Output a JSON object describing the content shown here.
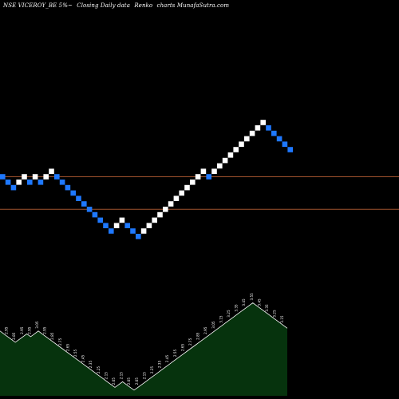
{
  "header": {
    "symbol": "NSE VICEROY_BE 5%~",
    "chart_kind": "Closing Daily data",
    "chart_style": "Renko",
    "brand": "charts MunafaSutra.com"
  },
  "colors": {
    "background": "#000000",
    "up_brick": "#ffffff",
    "down_brick": "#1e78ff",
    "reference_line": "#a0522d",
    "volume_fill": "#06330d",
    "volume_stroke": "#ffffff",
    "label": "#ffffff"
  },
  "chart_data": {
    "type": "renko",
    "grid": false,
    "reference_lines": [
      {
        "level": 0
      },
      {
        "level": -6
      }
    ],
    "bricks": [
      {
        "level": 0,
        "dir": "down"
      },
      {
        "level": -1,
        "dir": "down"
      },
      {
        "level": -2,
        "dir": "down"
      },
      {
        "level": -1,
        "dir": "up"
      },
      {
        "level": 0,
        "dir": "up"
      },
      {
        "level": -1,
        "dir": "down"
      },
      {
        "level": 0,
        "dir": "up"
      },
      {
        "level": -1,
        "dir": "down"
      },
      {
        "level": 0,
        "dir": "up"
      },
      {
        "level": 1,
        "dir": "up"
      },
      {
        "level": 0,
        "dir": "down"
      },
      {
        "level": -1,
        "dir": "down"
      },
      {
        "level": -2,
        "dir": "down"
      },
      {
        "level": -3,
        "dir": "down"
      },
      {
        "level": -4,
        "dir": "down"
      },
      {
        "level": -5,
        "dir": "down"
      },
      {
        "level": -6,
        "dir": "down"
      },
      {
        "level": -7,
        "dir": "down"
      },
      {
        "level": -8,
        "dir": "down"
      },
      {
        "level": -9,
        "dir": "down"
      },
      {
        "level": -10,
        "dir": "down"
      },
      {
        "level": -9,
        "dir": "up"
      },
      {
        "level": -8,
        "dir": "up"
      },
      {
        "level": -9,
        "dir": "down"
      },
      {
        "level": -10,
        "dir": "down"
      },
      {
        "level": -11,
        "dir": "down"
      },
      {
        "level": -10,
        "dir": "up"
      },
      {
        "level": -9,
        "dir": "up"
      },
      {
        "level": -8,
        "dir": "up"
      },
      {
        "level": -7,
        "dir": "up"
      },
      {
        "level": -6,
        "dir": "up"
      },
      {
        "level": -5,
        "dir": "up"
      },
      {
        "level": -4,
        "dir": "up"
      },
      {
        "level": -3,
        "dir": "up"
      },
      {
        "level": -2,
        "dir": "up"
      },
      {
        "level": -1,
        "dir": "up"
      },
      {
        "level": 0,
        "dir": "up"
      },
      {
        "level": 1,
        "dir": "up"
      },
      {
        "level": 0,
        "dir": "down"
      },
      {
        "level": 1,
        "dir": "up"
      },
      {
        "level": 2,
        "dir": "up"
      },
      {
        "level": 3,
        "dir": "up"
      },
      {
        "level": 4,
        "dir": "up"
      },
      {
        "level": 5,
        "dir": "up"
      },
      {
        "level": 6,
        "dir": "up"
      },
      {
        "level": 7,
        "dir": "up"
      },
      {
        "level": 8,
        "dir": "up"
      },
      {
        "level": 9,
        "dir": "up"
      },
      {
        "level": 10,
        "dir": "up"
      },
      {
        "level": 9,
        "dir": "down"
      },
      {
        "level": 8,
        "dir": "down"
      },
      {
        "level": 7,
        "dir": "down"
      },
      {
        "level": 6,
        "dir": "down"
      },
      {
        "level": 5,
        "dir": "down"
      }
    ],
    "volume_labels": [
      "3.05",
      "3.00",
      "2.95",
      "2.90",
      "2.85",
      "2.90",
      "2.95",
      "3.00",
      "2.95",
      "3.00",
      "3.05",
      "3.00",
      "2.95",
      "2.90",
      "2.85",
      "2.80",
      "2.75",
      "2.70",
      "2.65",
      "2.60",
      "2.55",
      "2.50",
      "2.45",
      "2.40",
      "2.35",
      "2.30",
      "2.25",
      "2.20",
      "2.15",
      "2.10",
      "2.05",
      "2.10",
      "2.15",
      "2.10",
      "2.05",
      "2.00",
      "2.05",
      "2.10",
      "2.15",
      "2.20",
      "2.25",
      "2.30",
      "2.35",
      "2.40",
      "2.45",
      "2.50",
      "2.55",
      "2.60",
      "2.65",
      "2.70",
      "2.75",
      "2.80",
      "2.85",
      "2.90",
      "2.95",
      "3.00",
      "3.05",
      "3.10",
      "3.15",
      "3.20",
      "3.25",
      "3.30",
      "3.35",
      "3.40",
      "3.45",
      "3.50",
      "3.55",
      "3.50",
      "3.45",
      "3.40",
      "3.35",
      "3.30",
      "3.25",
      "3.20",
      "3.15",
      "3.10"
    ],
    "volume_values": [
      3.05,
      3.0,
      2.95,
      2.9,
      2.85,
      2.9,
      2.95,
      3.0,
      2.95,
      3.0,
      3.05,
      3.0,
      2.95,
      2.9,
      2.85,
      2.8,
      2.75,
      2.7,
      2.65,
      2.6,
      2.55,
      2.5,
      2.45,
      2.4,
      2.35,
      2.3,
      2.25,
      2.2,
      2.15,
      2.1,
      2.05,
      2.1,
      2.15,
      2.1,
      2.05,
      2.0,
      2.05,
      2.1,
      2.15,
      2.2,
      2.25,
      2.3,
      2.35,
      2.4,
      2.45,
      2.5,
      2.55,
      2.6,
      2.65,
      2.7,
      2.75,
      2.8,
      2.85,
      2.9,
      2.95,
      3.0,
      3.05,
      3.1,
      3.15,
      3.2,
      3.25,
      3.3,
      3.35,
      3.4,
      3.45,
      3.5,
      3.55,
      3.5,
      3.45,
      3.4,
      3.35,
      3.3,
      3.25,
      3.2,
      3.15,
      3.1
    ]
  }
}
